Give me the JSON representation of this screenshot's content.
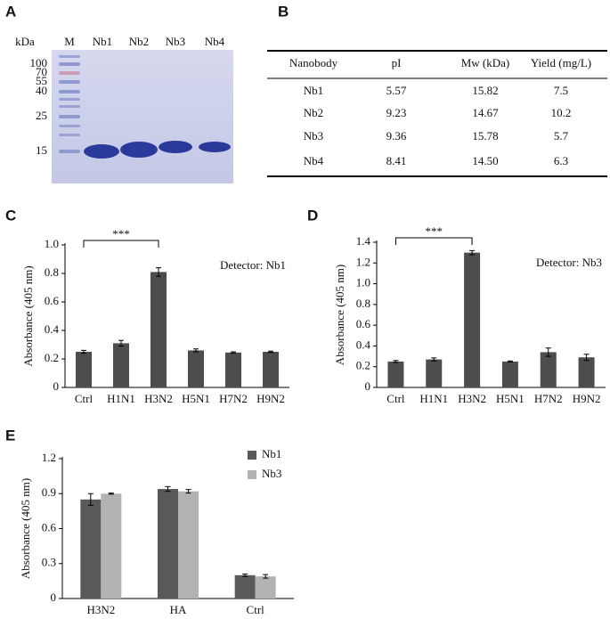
{
  "gel": {
    "panel": "A",
    "unit": "kDa",
    "lanes": [
      "M",
      "Nb1",
      "Nb2",
      "Nb3",
      "Nb4"
    ],
    "markers": [
      "100",
      "70",
      "55",
      "40",
      "25",
      "15"
    ]
  },
  "table": {
    "panel": "B",
    "header": [
      "Nanobody",
      "pI",
      "Mw (kDa)",
      "Yield (mg/L)"
    ],
    "rows": [
      [
        "Nb1",
        "5.57",
        "15.82",
        "7.5"
      ],
      [
        "Nb2",
        "9.23",
        "14.67",
        "10.2"
      ],
      [
        "Nb3",
        "9.36",
        "15.78",
        "5.7"
      ],
      [
        "Nb4",
        "8.41",
        "14.50",
        "6.3"
      ]
    ]
  },
  "chart_data": [
    {
      "type": "bar",
      "panel": "C",
      "y_label": "Absorbance (405 nm)",
      "annotation": "Detector: Nb1",
      "significance": {
        "label": "***",
        "categories": [
          "Ctrl",
          "H3N2"
        ]
      },
      "categories": [
        "Ctrl",
        "H1N1",
        "H3N2",
        "H5N1",
        "H7N2",
        "H9N2"
      ],
      "values": [
        0.25,
        0.31,
        0.81,
        0.26,
        0.245,
        0.25
      ],
      "errors": [
        0.01,
        0.02,
        0.03,
        0.01,
        0.005,
        0.005
      ],
      "color": "#4d4d4d",
      "ylim": [
        0,
        1
      ],
      "yticks": [
        0,
        0.2,
        0.4,
        0.6,
        0.8,
        {
          "value": 1,
          "label": "1.0"
        }
      ]
    },
    {
      "type": "bar",
      "panel": "D",
      "y_label": "Absorbance (405 nm)",
      "annotation": "Detector: Nb3",
      "significance": {
        "label": "***",
        "categories": [
          "Ctrl",
          "H3N2"
        ]
      },
      "categories": [
        "Ctrl",
        "H1N1",
        "H3N2",
        "H5N1",
        "H7N2",
        "H9N2"
      ],
      "values": [
        0.25,
        0.27,
        1.3,
        0.25,
        0.34,
        0.29
      ],
      "errors": [
        0.01,
        0.015,
        0.02,
        0.005,
        0.04,
        0.03
      ],
      "color": "#4d4d4d",
      "ylim": [
        0,
        1.4
      ],
      "yticks": [
        0,
        0.2,
        0.4,
        0.6,
        0.8,
        {
          "value": 1,
          "label": "1.0"
        },
        1.2,
        1.4
      ]
    },
    {
      "type": "bar",
      "panel": "E",
      "y_label": "Absorbance (405 nm)",
      "categories": [
        "H3N2",
        "HA",
        "Ctrl"
      ],
      "series": [
        {
          "name": "Nb1",
          "color": "#595959",
          "values": [
            0.85,
            0.94,
            0.2
          ],
          "errors": [
            0.05,
            0.02,
            0.01
          ]
        },
        {
          "name": "Nb3",
          "color": "#b3b3b3",
          "values": [
            0.9,
            0.92,
            0.19
          ],
          "errors": [
            0.005,
            0.015,
            0.015
          ]
        }
      ],
      "ylim": [
        0,
        1.2
      ],
      "yticks": [
        0,
        0.3,
        0.6,
        0.9,
        1.2
      ]
    }
  ]
}
